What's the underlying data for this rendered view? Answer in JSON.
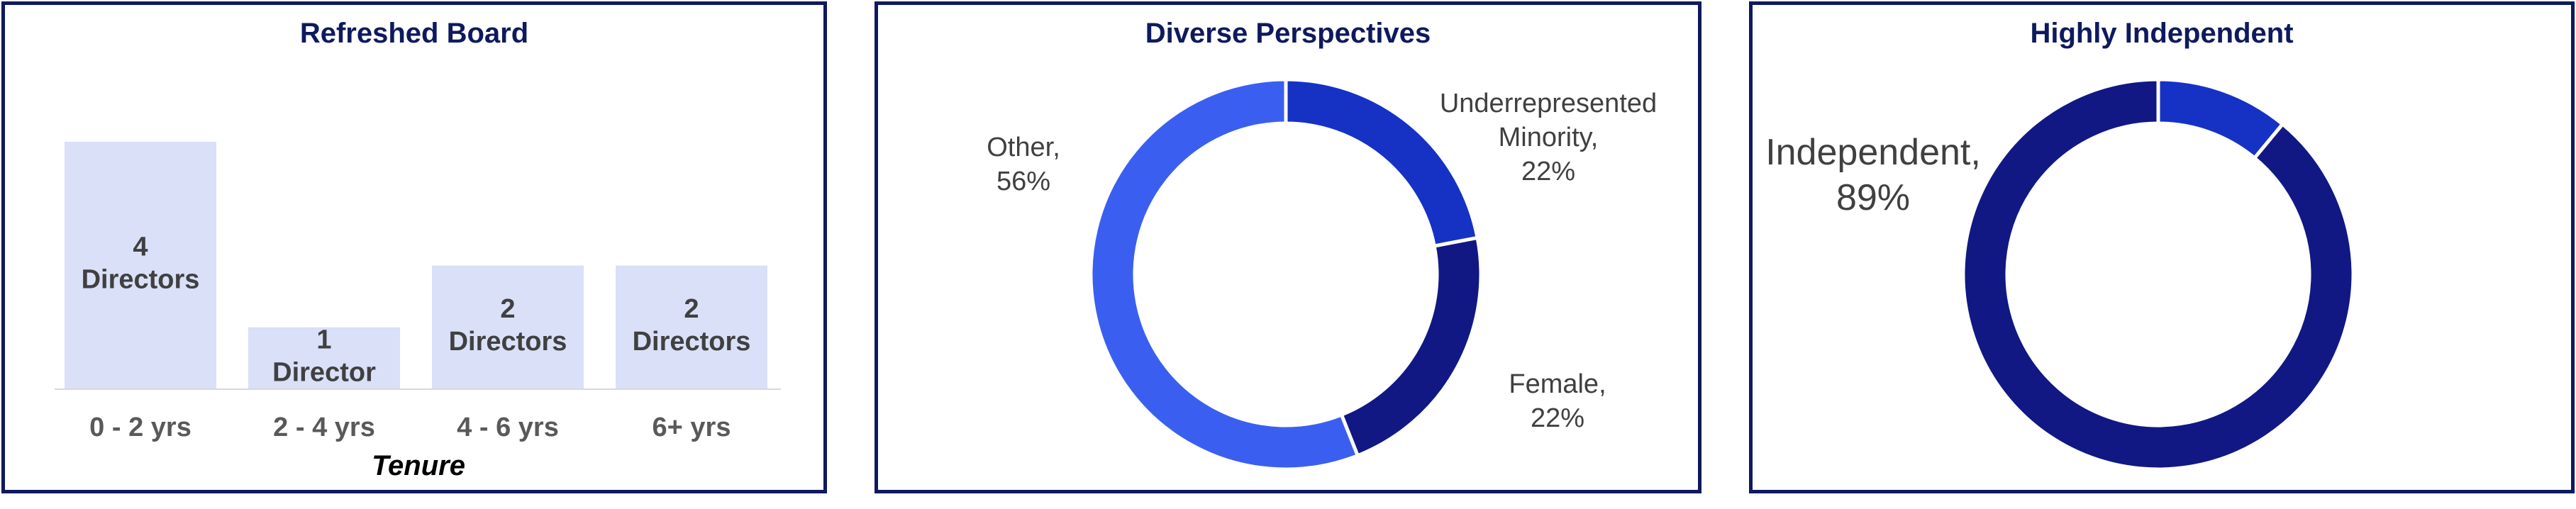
{
  "chart_data": [
    {
      "type": "bar",
      "title": "Refreshed Board",
      "xlabel": "Tenure",
      "ylabel": "",
      "categories": [
        "0 - 2 yrs",
        "2 - 4 yrs",
        "4 - 6 yrs",
        "6+ yrs"
      ],
      "values": [
        4,
        1,
        2,
        2
      ],
      "data_labels": [
        [
          "4",
          "Directors"
        ],
        [
          "1",
          "Director"
        ],
        [
          "2",
          "Directors"
        ],
        [
          "2",
          "Directors"
        ]
      ],
      "ylim": [
        0,
        4
      ],
      "grid": false,
      "color": "#d9e0f8"
    },
    {
      "type": "pie",
      "variant": "donut",
      "title": "Diverse Perspectives",
      "slices": [
        {
          "label": [
            "Underrepresented",
            "Minority,",
            "22%"
          ],
          "value": 22,
          "color": "#1632c4"
        },
        {
          "label": [
            "Female,",
            "22%"
          ],
          "value": 22,
          "color": "#111884"
        },
        {
          "label": [
            "Other,",
            "56%"
          ],
          "value": 56,
          "color": "#3a5ff0"
        }
      ]
    },
    {
      "type": "pie",
      "variant": "donut",
      "title": "Highly Independent",
      "slices": [
        {
          "label": [],
          "value": 11,
          "color": "#1632c4"
        },
        {
          "label": [
            "Independent,",
            "89%"
          ],
          "value": 89,
          "color": "#111884"
        }
      ]
    }
  ]
}
